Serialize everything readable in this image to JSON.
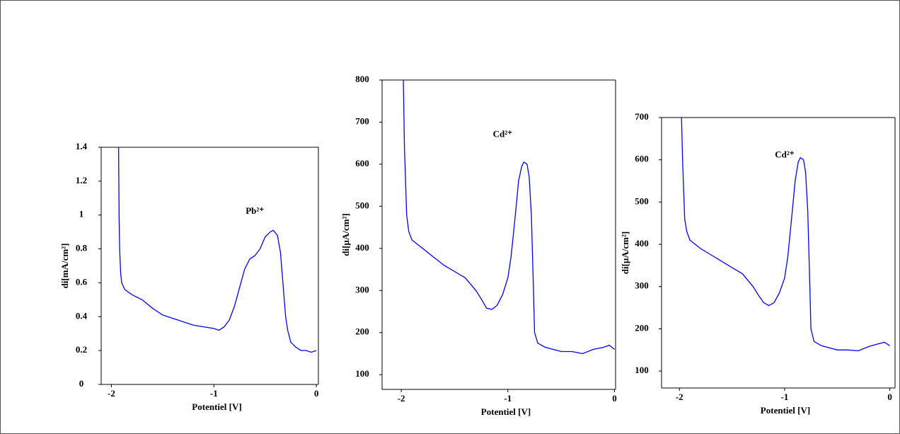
{
  "chart_data": [
    {
      "type": "line",
      "xlabel": "Potentiel [V]",
      "ylabel": "di[mA/cm²]",
      "annotation": "Pb²⁺",
      "color": "#0000ff",
      "x": [
        -1.93,
        -1.925,
        -1.92,
        -1.91,
        -1.9,
        -1.87,
        -1.8,
        -1.7,
        -1.6,
        -1.5,
        -1.4,
        -1.3,
        -1.2,
        -1.1,
        -1.0,
        -0.95,
        -0.9,
        -0.85,
        -0.8,
        -0.75,
        -0.7,
        -0.65,
        -0.6,
        -0.55,
        -0.5,
        -0.45,
        -0.42,
        -0.38,
        -0.35,
        -0.32,
        -0.3,
        -0.28,
        -0.25,
        -0.2,
        -0.15,
        -0.1,
        -0.05,
        0
      ],
      "values": [
        1.4,
        1.0,
        0.8,
        0.66,
        0.6,
        0.56,
        0.53,
        0.5,
        0.45,
        0.41,
        0.39,
        0.37,
        0.35,
        0.34,
        0.33,
        0.32,
        0.34,
        0.38,
        0.46,
        0.57,
        0.68,
        0.74,
        0.76,
        0.8,
        0.87,
        0.9,
        0.91,
        0.88,
        0.78,
        0.55,
        0.4,
        0.32,
        0.25,
        0.22,
        0.2,
        0.2,
        0.19,
        0.2
      ],
      "xlim": [
        -2.1,
        0.02
      ],
      "ylim": [
        0,
        1.4
      ],
      "xticks": [
        -2,
        -1,
        0
      ],
      "yticks": [
        0,
        0.2,
        0.4,
        0.6,
        0.8,
        1,
        1.2,
        1.4
      ]
    },
    {
      "type": "line",
      "xlabel": "Potentiel [V]",
      "ylabel": "di[µA/cm²]",
      "annotation": "Cd²⁺",
      "color": "#0000ff",
      "x": [
        -1.98,
        -1.97,
        -1.96,
        -1.95,
        -1.93,
        -1.9,
        -1.85,
        -1.8,
        -1.7,
        -1.6,
        -1.5,
        -1.4,
        -1.3,
        -1.25,
        -1.2,
        -1.15,
        -1.1,
        -1.05,
        -1.0,
        -0.97,
        -0.93,
        -0.9,
        -0.87,
        -0.85,
        -0.82,
        -0.8,
        -0.78,
        -0.76,
        -0.75,
        -0.72,
        -0.65,
        -0.5,
        -0.4,
        -0.3,
        -0.2,
        -0.1,
        -0.05,
        0
      ],
      "values": [
        800,
        640,
        560,
        480,
        440,
        420,
        410,
        400,
        380,
        360,
        345,
        330,
        300,
        280,
        258,
        255,
        265,
        290,
        330,
        380,
        480,
        560,
        595,
        605,
        600,
        570,
        480,
        300,
        200,
        175,
        165,
        155,
        155,
        150,
        160,
        165,
        170,
        160
      ],
      "xlim": [
        -2.18,
        0.01
      ],
      "ylim": [
        65,
        800
      ],
      "xticks": [
        -2,
        -1,
        0
      ],
      "yticks": [
        100,
        200,
        300,
        400,
        500,
        600,
        700,
        800
      ]
    },
    {
      "type": "line",
      "xlabel": "Potentiel [V]",
      "ylabel": "di[µA/cm²]",
      "annotation": "Cd²⁺",
      "color": "#0000ff",
      "x": [
        -1.98,
        -1.97,
        -1.96,
        -1.95,
        -1.93,
        -1.9,
        -1.85,
        -1.8,
        -1.7,
        -1.6,
        -1.5,
        -1.4,
        -1.3,
        -1.25,
        -1.2,
        -1.15,
        -1.1,
        -1.05,
        -1.0,
        -0.97,
        -0.93,
        -0.9,
        -0.87,
        -0.85,
        -0.82,
        -0.8,
        -0.78,
        -0.76,
        -0.75,
        -0.72,
        -0.65,
        -0.5,
        -0.4,
        -0.3,
        -0.2,
        -0.1,
        -0.05,
        0
      ],
      "values": [
        700,
        600,
        530,
        460,
        430,
        410,
        400,
        390,
        375,
        360,
        345,
        330,
        300,
        280,
        262,
        255,
        262,
        285,
        320,
        370,
        470,
        550,
        595,
        605,
        600,
        570,
        480,
        300,
        200,
        170,
        160,
        150,
        150,
        148,
        158,
        165,
        168,
        160
      ],
      "xlim": [
        -2.17,
        0.05
      ],
      "ylim": [
        60,
        700
      ],
      "xticks": [
        -2,
        -1,
        0
      ],
      "yticks": [
        100,
        200,
        300,
        400,
        500,
        600,
        700
      ]
    }
  ]
}
